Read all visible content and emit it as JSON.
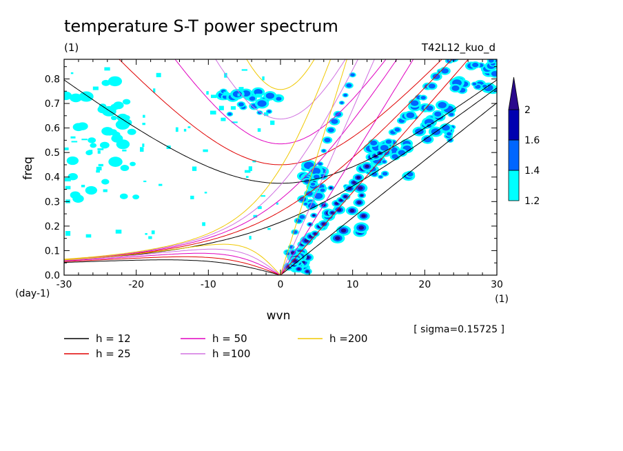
{
  "chart_data": {
    "type": "heatmap",
    "title": "temperature S-T power spectrum",
    "subtitle_left": "(1)",
    "subtitle_right": "T42L12_kuo_d",
    "xlabel": "wvn",
    "ylabel": "freq",
    "x_unit": "(1)",
    "y_unit": "(day-1)",
    "xlim": [
      -30,
      30
    ],
    "ylim": [
      0,
      0.88
    ],
    "x_ticks": [
      -30,
      -20,
      -10,
      0,
      10,
      20,
      30
    ],
    "x_tick_labels": [
      "-30",
      "-20",
      "-10",
      "0",
      "10",
      "20",
      "30"
    ],
    "y_ticks": [
      0,
      0.1,
      0.2,
      0.3,
      0.4,
      0.5,
      0.6,
      0.7,
      0.8
    ],
    "y_tick_labels": [
      "0.0",
      "0.1",
      "0.2",
      "0.3",
      "0.4",
      "0.5",
      "0.6",
      "0.7",
      "0.8"
    ],
    "annotation": "[ sigma=0.15725 ]",
    "colorbar": {
      "levels": [
        1.2,
        1.4,
        1.6,
        2
      ],
      "labels": [
        "1.2",
        "1.4",
        "1.6",
        "2"
      ],
      "colors": [
        "#00ffff",
        "#0066ff",
        "#0000b0",
        "#2a0a8c"
      ]
    },
    "dispersion_series": [
      {
        "name": "h = 12",
        "h": 12,
        "color": "#000000"
      },
      {
        "name": "h = 25",
        "h": 25,
        "color": "#e00000"
      },
      {
        "name": "h = 50",
        "h": 50,
        "color": "#e000c0"
      },
      {
        "name": "h =100",
        "h": 100,
        "color": "#d070e0"
      },
      {
        "name": "h =200",
        "h": 200,
        "color": "#f0c800"
      }
    ],
    "power_regions": [
      {
        "x": [
          1,
          4
        ],
        "y": [
          0.01,
          0.1
        ],
        "level": 2
      },
      {
        "x": [
          4,
          12
        ],
        "y": [
          0.15,
          0.38
        ],
        "level": 2
      },
      {
        "x": [
          3,
          6
        ],
        "y": [
          0.25,
          0.45
        ],
        "level": 1.6
      },
      {
        "x": [
          12,
          18
        ],
        "y": [
          0.4,
          0.55
        ],
        "level": 1.6
      },
      {
        "x": [
          18,
          24
        ],
        "y": [
          0.55,
          0.7
        ],
        "level": 1.6
      },
      {
        "x": [
          24,
          30
        ],
        "y": [
          0.75,
          0.88
        ],
        "level": 1.6
      },
      {
        "x": [
          -8,
          0
        ],
        "y": [
          0.65,
          0.75
        ],
        "level": 1.6
      },
      {
        "x": [
          -30,
          -20
        ],
        "y": [
          0.3,
          0.8
        ],
        "level": 1.2
      }
    ]
  }
}
